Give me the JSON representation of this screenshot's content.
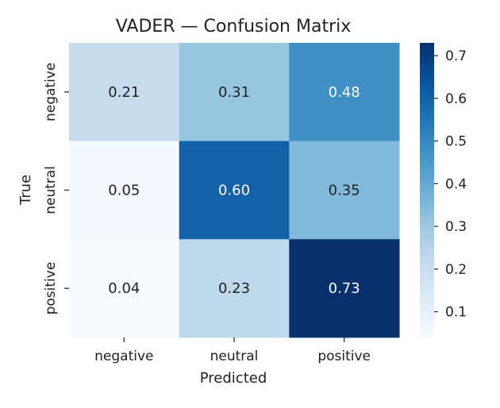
{
  "chart_data": {
    "type": "heatmap",
    "title": "VADER — Confusion Matrix",
    "xlabel": "Predicted",
    "ylabel": "True",
    "x_categories": [
      "negative",
      "neutral",
      "positive"
    ],
    "y_categories": [
      "negative",
      "neutral",
      "positive"
    ],
    "values": [
      [
        0.21,
        0.31,
        0.48
      ],
      [
        0.05,
        0.6,
        0.35
      ],
      [
        0.04,
        0.23,
        0.73
      ]
    ],
    "cell_labels": [
      [
        "0.21",
        "0.31",
        "0.48"
      ],
      [
        "0.05",
        "0.60",
        "0.35"
      ],
      [
        "0.04",
        "0.23",
        "0.73"
      ]
    ],
    "colorbar": {
      "range": [
        0.04,
        0.73
      ],
      "ticks": [
        0.1,
        0.2,
        0.3,
        0.4,
        0.5,
        0.6,
        0.7
      ],
      "tick_labels": [
        "0.1",
        "0.2",
        "0.3",
        "0.4",
        "0.5",
        "0.6",
        "0.7"
      ]
    },
    "colormap": "Blues",
    "grid": false,
    "legend": "colorbar-right"
  }
}
